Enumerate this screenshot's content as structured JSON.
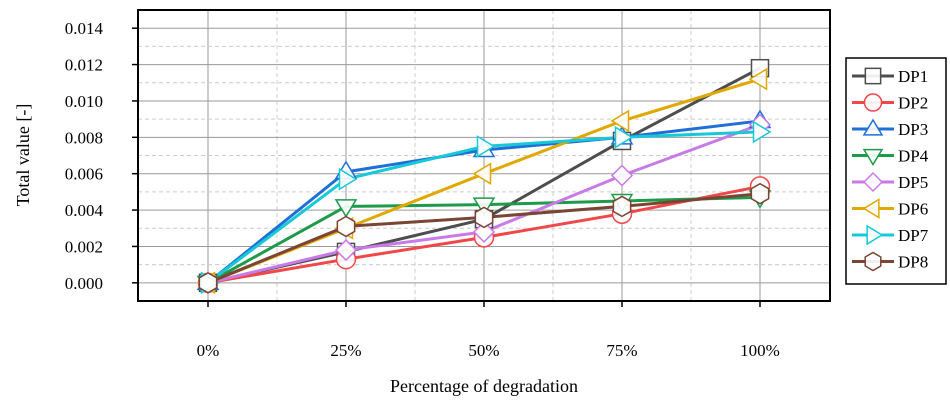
{
  "chart_data": {
    "type": "line",
    "xlabel": "Percentage of degradation",
    "ylabel": "Total value [-]",
    "categories": [
      "0%",
      "25%",
      "50%",
      "75%",
      "100%"
    ],
    "ylim": [
      -0.001,
      0.015
    ],
    "yticks": [
      "0.000",
      "0.002",
      "0.004",
      "0.006",
      "0.008",
      "0.010",
      "0.012",
      "0.014"
    ],
    "grid": true,
    "legend_position": "right",
    "series": [
      {
        "name": "DP1",
        "color": "#4d4d4d",
        "marker": "square",
        "values": [
          0.0,
          0.0017,
          0.0035,
          0.0078,
          0.0118
        ]
      },
      {
        "name": "DP2",
        "color": "#f04848",
        "marker": "circle",
        "values": [
          0.0,
          0.0013,
          0.0025,
          0.0038,
          0.0053
        ]
      },
      {
        "name": "DP3",
        "color": "#1f6fd6",
        "marker": "triangle-up",
        "values": [
          0.0,
          0.0061,
          0.0073,
          0.008,
          0.0089
        ]
      },
      {
        "name": "DP4",
        "color": "#1f9a4a",
        "marker": "triangle-down",
        "values": [
          0.0,
          0.0042,
          0.0043,
          0.0045,
          0.0047
        ]
      },
      {
        "name": "DP5",
        "color": "#c87ae6",
        "marker": "diamond",
        "values": [
          0.0,
          0.0018,
          0.0028,
          0.0059,
          0.0087
        ]
      },
      {
        "name": "DP6",
        "color": "#e0a800",
        "marker": "triangle-left",
        "values": [
          0.0,
          0.003,
          0.006,
          0.0089,
          0.0112
        ]
      },
      {
        "name": "DP7",
        "color": "#17c8d8",
        "marker": "triangle-right",
        "values": [
          0.0,
          0.0057,
          0.0075,
          0.008,
          0.0083
        ]
      },
      {
        "name": "DP8",
        "color": "#7a4535",
        "marker": "hexagon",
        "values": [
          0.0,
          0.0031,
          0.0036,
          0.0042,
          0.0049
        ]
      }
    ]
  }
}
